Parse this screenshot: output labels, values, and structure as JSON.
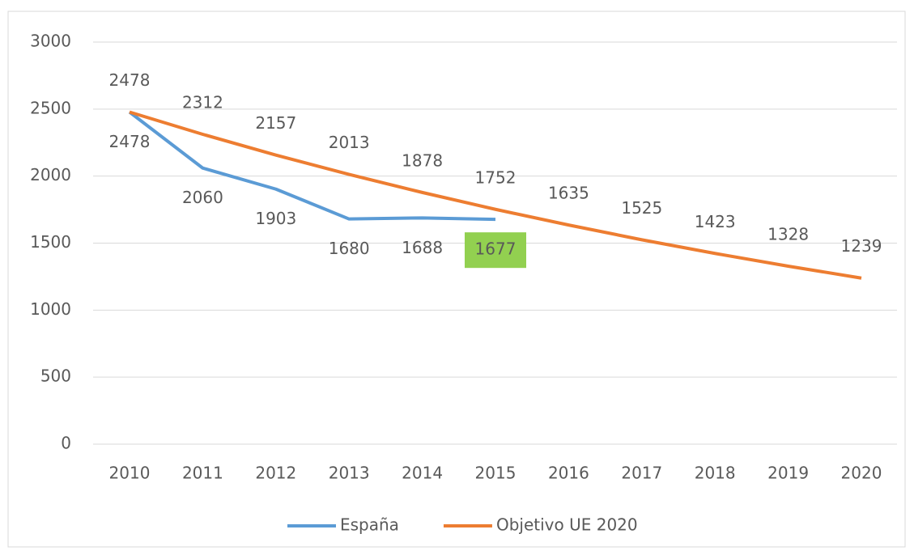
{
  "chart_data": {
    "type": "line",
    "categories": [
      "2010",
      "2011",
      "2012",
      "2013",
      "2014",
      "2015",
      "2016",
      "2017",
      "2018",
      "2019",
      "2020"
    ],
    "series": [
      {
        "name": "España",
        "color": "#5b9bd5",
        "values": [
          2478,
          2060,
          1903,
          1680,
          1688,
          1677,
          null,
          null,
          null,
          null,
          null
        ]
      },
      {
        "name": "Objetivo UE 2020",
        "color": "#ed7d31",
        "values": [
          2478,
          2312,
          2157,
          2013,
          1878,
          1752,
          1635,
          1525,
          1423,
          1328,
          1239
        ]
      }
    ],
    "ylim": [
      0,
      3000
    ],
    "yticks": [
      0,
      500,
      1000,
      1500,
      2000,
      2500,
      3000
    ],
    "grid": true,
    "legend": "bottom"
  }
}
